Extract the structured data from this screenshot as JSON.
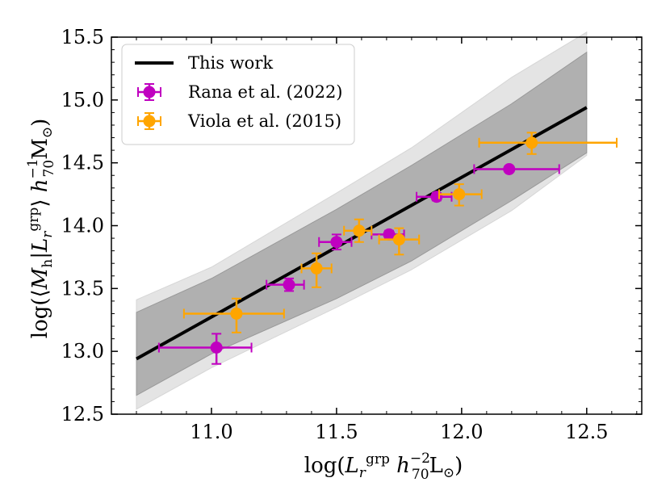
{
  "chart_data": {
    "type": "scatter",
    "xlabel": "log(L_r^grp h_70^-2 L_⊙)",
    "ylabel": "log(⟨M_h|L_r^grp⟩ h_70^-1 M_⊙)",
    "xlim": [
      10.6,
      12.72
    ],
    "ylim": [
      12.5,
      15.5
    ],
    "x_ticks": [
      "11.0",
      "11.5",
      "12.0",
      "12.5"
    ],
    "y_ticks": [
      "12.5",
      "13.0",
      "13.5",
      "14.0",
      "14.5",
      "15.0",
      "15.5"
    ],
    "model": {
      "name": "This work",
      "x": [
        10.7,
        12.5
      ],
      "y": [
        12.94,
        14.94
      ],
      "band_inner": {
        "x": [
          10.7,
          11.0,
          11.5,
          11.8,
          12.2,
          12.5
        ],
        "lower": [
          12.65,
          12.98,
          13.42,
          13.72,
          14.2,
          14.58
        ],
        "upper": [
          13.31,
          13.58,
          14.13,
          14.48,
          14.97,
          15.38
        ]
      },
      "band_outer": {
        "x": [
          10.7,
          11.0,
          11.5,
          11.8,
          12.2,
          12.5
        ],
        "lower": [
          12.54,
          12.87,
          13.35,
          13.65,
          14.12,
          14.56
        ],
        "upper": [
          13.41,
          13.67,
          14.26,
          14.62,
          15.18,
          15.54
        ]
      }
    },
    "series": [
      {
        "name": "Rana et al. (2022)",
        "color": "#c000c0",
        "points": [
          {
            "x": 11.02,
            "y": 13.03,
            "xerr": [
              0.23,
              0.14
            ],
            "yerr": [
              0.13,
              0.11
            ]
          },
          {
            "x": 11.31,
            "y": 13.53,
            "xerr": [
              0.09,
              0.06
            ],
            "yerr": [
              0.05,
              0.05
            ]
          },
          {
            "x": 11.5,
            "y": 13.87,
            "xerr": [
              0.07,
              0.06
            ],
            "yerr": [
              0.06,
              0.06
            ]
          },
          {
            "x": 11.71,
            "y": 13.93,
            "xerr": [
              0.07,
              0.06
            ],
            "yerr": [
              0.03,
              0.03
            ]
          },
          {
            "x": 11.9,
            "y": 14.23,
            "xerr": [
              0.08,
              0.06
            ],
            "yerr": [
              0.03,
              0.03
            ]
          },
          {
            "x": 12.19,
            "y": 14.45,
            "xerr": [
              0.14,
              0.2
            ],
            "yerr": [
              0.02,
              0.02
            ]
          }
        ]
      },
      {
        "name": "Viola et al. (2015)",
        "color": "#ffa500",
        "points": [
          {
            "x": 11.1,
            "y": 13.3,
            "xerr": [
              0.21,
              0.19
            ],
            "yerr": [
              0.15,
              0.12
            ]
          },
          {
            "x": 11.42,
            "y": 13.66,
            "xerr": [
              0.06,
              0.06
            ],
            "yerr": [
              0.15,
              0.12
            ]
          },
          {
            "x": 11.59,
            "y": 13.96,
            "xerr": [
              0.06,
              0.05
            ],
            "yerr": [
              0.09,
              0.09
            ]
          },
          {
            "x": 11.75,
            "y": 13.89,
            "xerr": [
              0.08,
              0.08
            ],
            "yerr": [
              0.12,
              0.09
            ]
          },
          {
            "x": 11.99,
            "y": 14.25,
            "xerr": [
              0.08,
              0.09
            ],
            "yerr": [
              0.09,
              0.08
            ]
          },
          {
            "x": 12.28,
            "y": 14.66,
            "xerr": [
              0.21,
              0.34
            ],
            "yerr": [
              0.09,
              0.08
            ]
          }
        ]
      }
    ],
    "legend": {
      "placement": "top-left",
      "entries": [
        "This work",
        "Rana et al. (2022)",
        "Viola et al. (2015)"
      ]
    }
  }
}
